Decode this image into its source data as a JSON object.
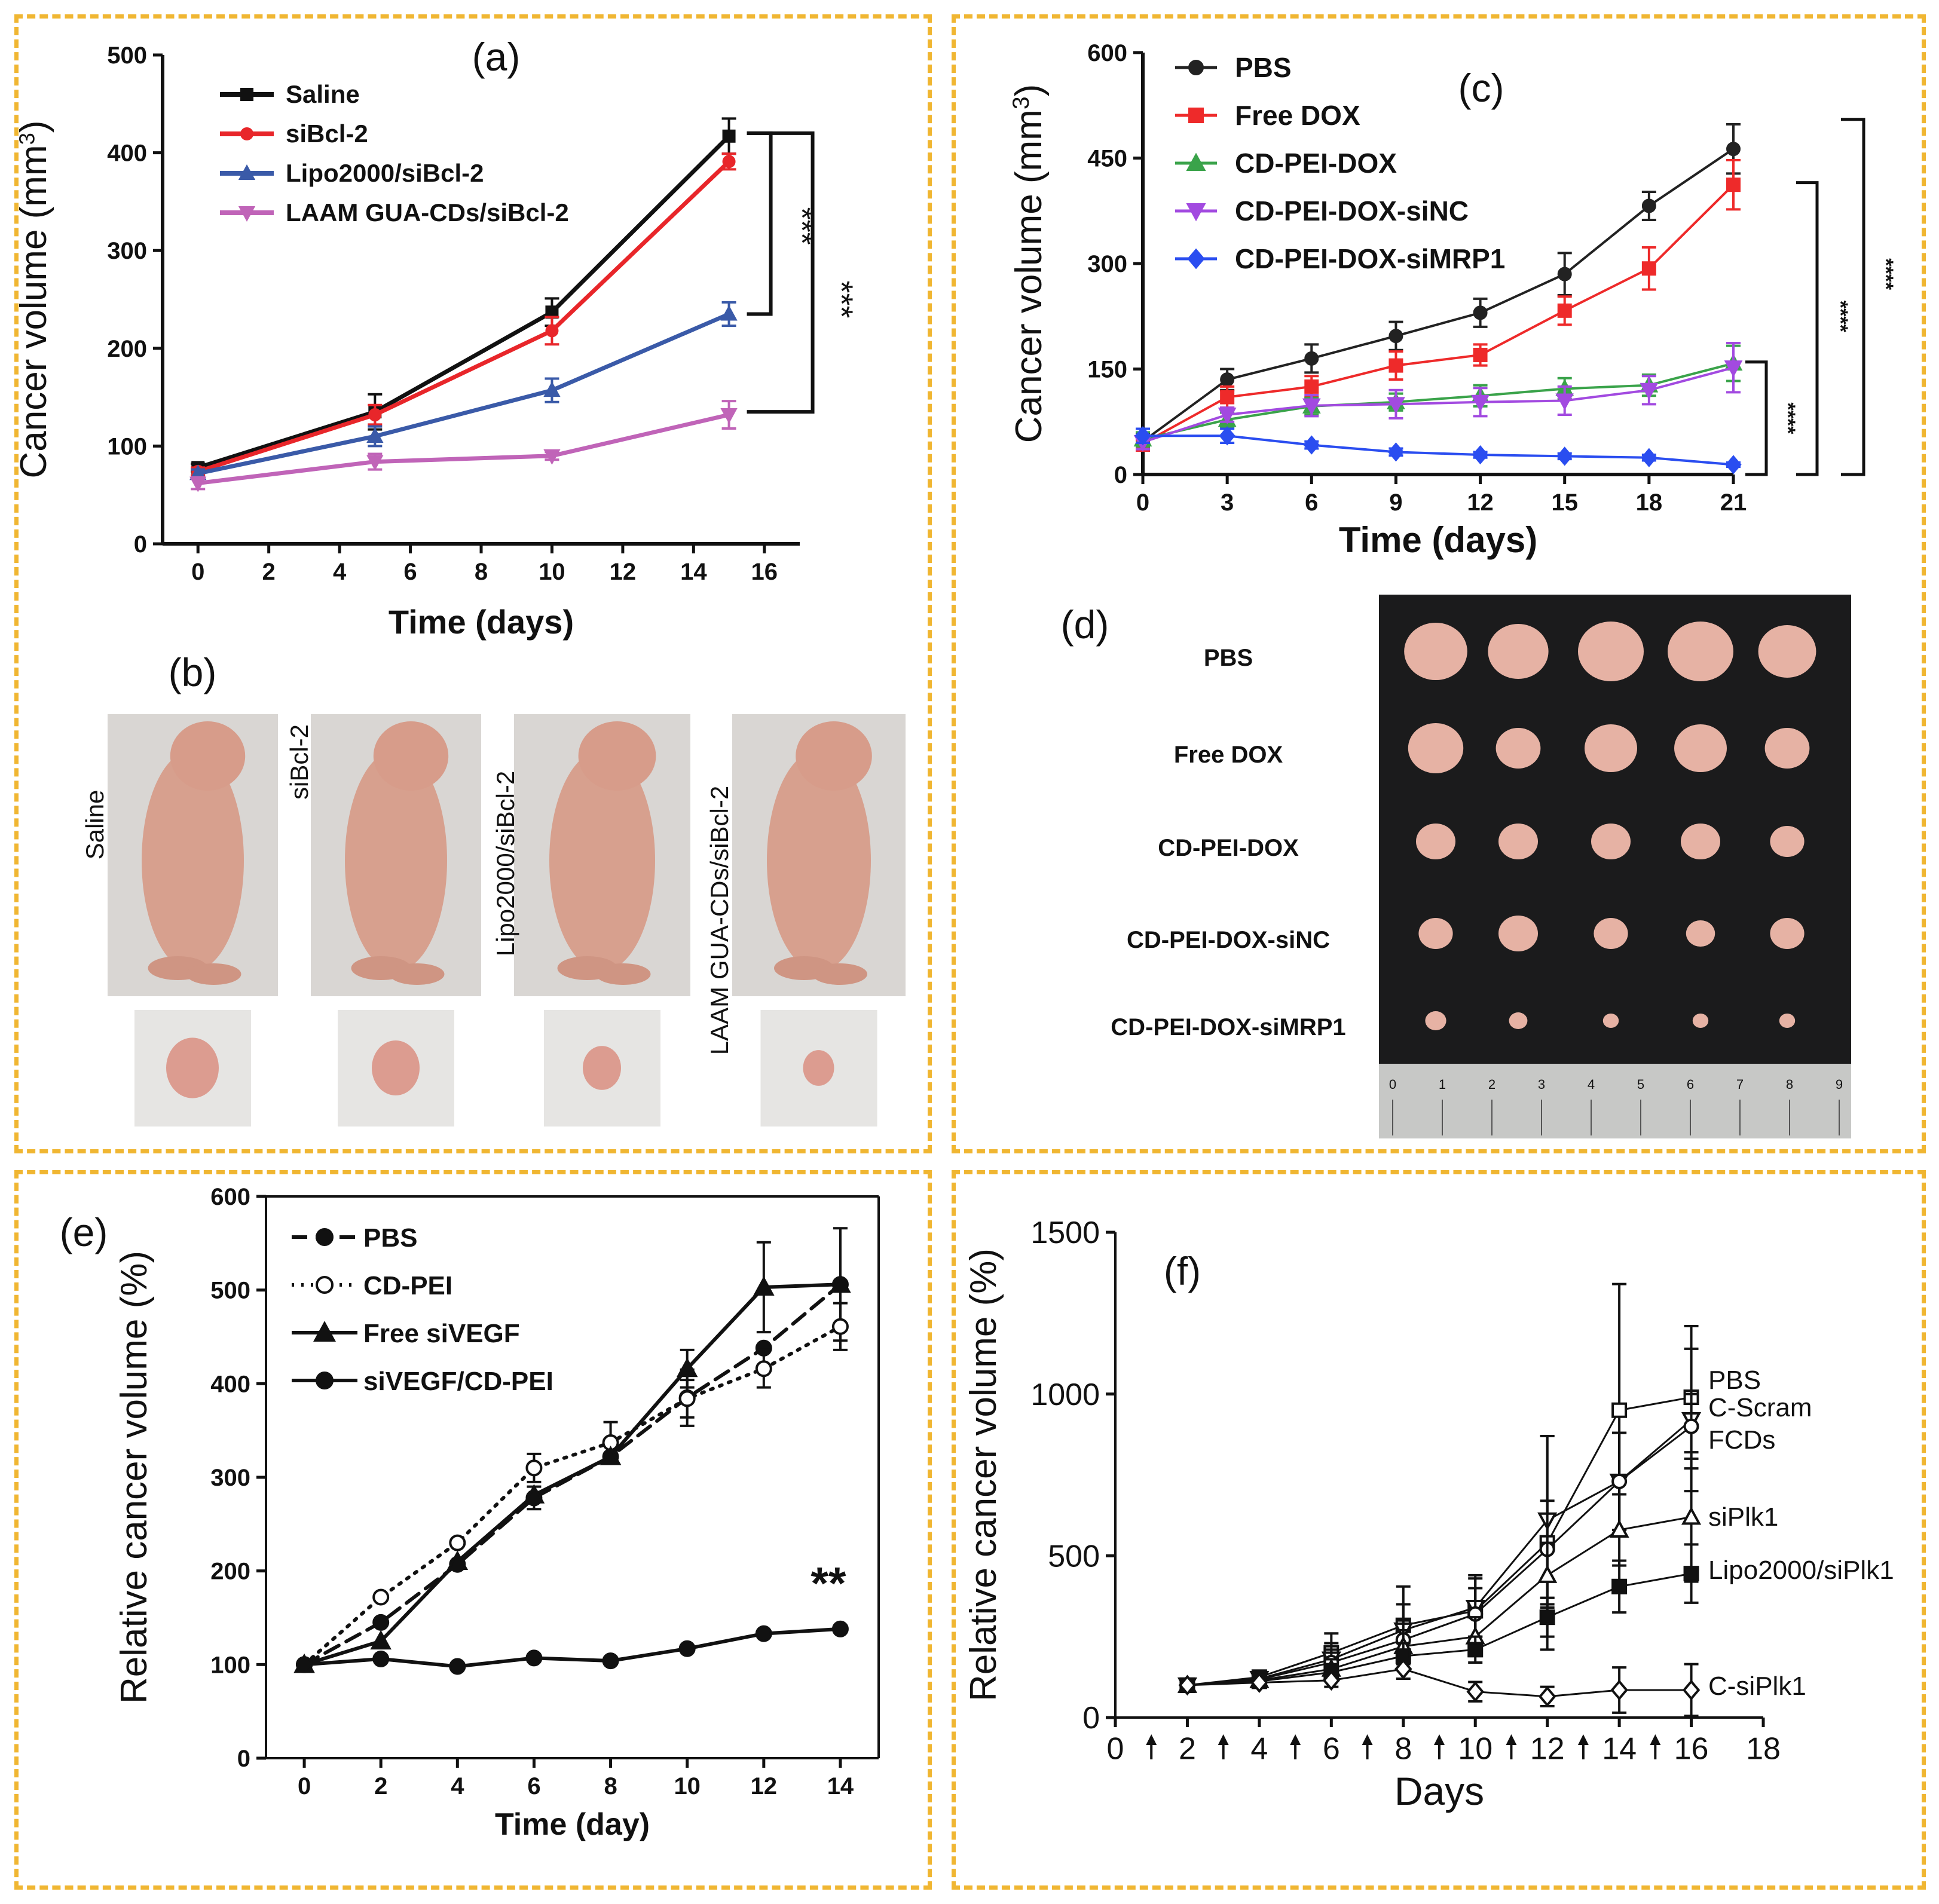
{
  "chart_data": [
    {
      "panel": "(a)",
      "type": "line",
      "xlabel": "Time (days)",
      "ylabel": "Cancer volume (mm",
      "ylabel_sup": "3",
      "ylabel_end": ")",
      "xlim": [
        -1,
        17
      ],
      "ylim": [
        0,
        500
      ],
      "xticks": [
        0,
        2,
        4,
        6,
        8,
        10,
        12,
        14,
        16
      ],
      "yticks": [
        0,
        100,
        200,
        300,
        400,
        500
      ],
      "legend_position": "top-left",
      "series": [
        {
          "name": "Saline",
          "color": "#111111",
          "marker": "square",
          "x": [
            0,
            5,
            10,
            15
          ],
          "y": [
            78,
            135,
            237,
            417
          ],
          "err": [
            4,
            18,
            14,
            18
          ]
        },
        {
          "name": "siBcl-2",
          "color": "#e8262a",
          "marker": "circle",
          "x": [
            0,
            5,
            10,
            15
          ],
          "y": [
            74,
            132,
            218,
            391
          ],
          "err": [
            4,
            10,
            14,
            8
          ]
        },
        {
          "name": "Lipo2000/siBcl-2",
          "color": "#3a5aa8",
          "marker": "triangle-up",
          "x": [
            0,
            5,
            10,
            15
          ],
          "y": [
            72,
            110,
            157,
            235
          ],
          "err": [
            4,
            10,
            12,
            12
          ]
        },
        {
          "name": "LAAM GUA-CDs/siBcl-2",
          "color": "#c064b8",
          "marker": "triangle-down",
          "x": [
            0,
            5,
            10,
            15
          ],
          "y": [
            62,
            84,
            90,
            132
          ],
          "err": [
            6,
            8,
            4,
            14
          ]
        }
      ],
      "significance": [
        "***",
        "***"
      ]
    },
    {
      "panel": "(c)",
      "type": "line",
      "xlabel": "Time (days)",
      "ylabel": "Cancer volume (mm",
      "ylabel_sup": "3",
      "ylabel_end": ")",
      "xlim": [
        0,
        21
      ],
      "ylim": [
        0,
        600
      ],
      "xticks": [
        0,
        3,
        6,
        9,
        12,
        15,
        18,
        21
      ],
      "yticks": [
        0,
        150,
        300,
        450,
        600
      ],
      "legend_position": "top-left",
      "series": [
        {
          "name": "PBS",
          "color": "#222222",
          "marker": "circle",
          "x": [
            0,
            3,
            6,
            9,
            12,
            15,
            18,
            21
          ],
          "y": [
            47,
            135,
            165,
            197,
            230,
            285,
            382,
            463
          ],
          "err": [
            10,
            15,
            20,
            20,
            20,
            30,
            20,
            35
          ]
        },
        {
          "name": "Free DOX",
          "color": "#ee2a2a",
          "marker": "square",
          "x": [
            0,
            3,
            6,
            9,
            12,
            15,
            18,
            21
          ],
          "y": [
            44,
            110,
            125,
            155,
            170,
            233,
            293,
            412
          ],
          "err": [
            10,
            15,
            15,
            20,
            15,
            20,
            30,
            35
          ]
        },
        {
          "name": "CD-PEI-DOX",
          "color": "#3aa34a",
          "marker": "triangle-up",
          "x": [
            0,
            3,
            6,
            9,
            12,
            15,
            18,
            21
          ],
          "y": [
            50,
            78,
            97,
            103,
            112,
            122,
            127,
            158
          ],
          "err": [
            10,
            10,
            12,
            12,
            15,
            15,
            15,
            25
          ]
        },
        {
          "name": "CD-PEI-DOX-siNC",
          "color": "#a24ae0",
          "marker": "triangle-down",
          "x": [
            0,
            3,
            6,
            9,
            12,
            15,
            18,
            21
          ],
          "y": [
            46,
            85,
            98,
            100,
            103,
            105,
            120,
            152
          ],
          "err": [
            10,
            10,
            15,
            20,
            20,
            20,
            20,
            35
          ]
        },
        {
          "name": "CD-PEI-DOX-siMRP1",
          "color": "#2a4df0",
          "marker": "diamond",
          "x": [
            0,
            3,
            6,
            9,
            12,
            15,
            18,
            21
          ],
          "y": [
            55,
            55,
            42,
            32,
            28,
            26,
            24,
            14
          ],
          "err": [
            10,
            10,
            5,
            5,
            4,
            4,
            4,
            3
          ]
        }
      ],
      "significance": [
        "****",
        "****",
        "****"
      ]
    },
    {
      "panel": "(e)",
      "type": "line",
      "xlabel": "Time (day)",
      "ylabel": "Relative cancer volume (%)",
      "xlim": [
        -1,
        15
      ],
      "ylim": [
        0,
        600
      ],
      "xticks": [
        0,
        2,
        4,
        6,
        8,
        10,
        12,
        14
      ],
      "yticks": [
        0,
        100,
        200,
        300,
        400,
        500,
        600
      ],
      "legend_position": "top-left",
      "series": [
        {
          "name": "PBS",
          "style": "dashed",
          "marker": "filled-circle",
          "x": [
            0,
            2,
            4,
            6,
            8,
            10,
            12,
            14
          ],
          "y": [
            100,
            145,
            207,
            278,
            322,
            385,
            438,
            506
          ],
          "err": [
            0,
            0,
            0,
            12,
            0,
            30,
            0,
            60
          ]
        },
        {
          "name": "CD-PEI",
          "style": "dotted",
          "marker": "open-circle",
          "x": [
            0,
            2,
            4,
            6,
            8,
            10,
            12,
            14
          ],
          "y": [
            100,
            172,
            230,
            310,
            337,
            384,
            416,
            461
          ],
          "err": [
            0,
            0,
            0,
            15,
            22,
            20,
            20,
            25
          ]
        },
        {
          "name": "Free siVEGF",
          "style": "solid",
          "marker": "triangle",
          "x": [
            0,
            2,
            4,
            6,
            8,
            10,
            12,
            14
          ],
          "y": [
            100,
            125,
            210,
            281,
            322,
            416,
            503,
            506
          ],
          "err": [
            0,
            0,
            0,
            0,
            0,
            20,
            48,
            0
          ]
        },
        {
          "name": "siVEGF/CD-PEI",
          "style": "solid",
          "marker": "filled-circle",
          "x": [
            0,
            2,
            4,
            6,
            8,
            10,
            12,
            14
          ],
          "y": [
            100,
            106,
            98,
            107,
            104,
            117,
            133,
            138
          ],
          "err": [
            0,
            0,
            0,
            0,
            0,
            0,
            0,
            0
          ]
        }
      ],
      "significance": [
        "**"
      ]
    },
    {
      "panel": "(f)",
      "type": "line",
      "xlabel": "Days",
      "ylabel": "Relative cancer volume (%)",
      "xlim": [
        0,
        18
      ],
      "ylim": [
        0,
        1500
      ],
      "xticks": [
        0,
        2,
        4,
        6,
        8,
        10,
        12,
        14,
        16,
        18
      ],
      "yticks": [
        0,
        500,
        1000,
        1500
      ],
      "dosing_arrows": [
        1,
        3,
        5,
        7,
        9,
        11,
        13,
        15
      ],
      "series": [
        {
          "name": "PBS",
          "marker": "open-square",
          "x": [
            2,
            4,
            6,
            8,
            10,
            12,
            14,
            16
          ],
          "y": [
            100,
            125,
            200,
            285,
            330,
            540,
            950,
            990
          ],
          "err": [
            0,
            20,
            60,
            120,
            110,
            330,
            390,
            220
          ]
        },
        {
          "name": "C-Scram",
          "marker": "open-triangle-down",
          "x": [
            2,
            4,
            6,
            8,
            10,
            12,
            14,
            16
          ],
          "y": [
            100,
            120,
            180,
            270,
            340,
            610,
            730,
            920
          ],
          "err": [
            0,
            20,
            50,
            80,
            90,
            260,
            150,
            220
          ]
        },
        {
          "name": "FCDs",
          "marker": "open-circle",
          "x": [
            2,
            4,
            6,
            8,
            10,
            12,
            14,
            16
          ],
          "y": [
            100,
            118,
            170,
            240,
            320,
            520,
            730,
            900
          ],
          "err": [
            0,
            15,
            40,
            60,
            80,
            150,
            150,
            100
          ]
        },
        {
          "name": "siPlk1",
          "marker": "open-triangle-up",
          "x": [
            2,
            4,
            6,
            8,
            10,
            12,
            14,
            16
          ],
          "y": [
            100,
            115,
            150,
            220,
            250,
            440,
            580,
            620
          ],
          "err": [
            0,
            15,
            30,
            50,
            60,
            100,
            110,
            200
          ]
        },
        {
          "name": "Lipo2000/siPlk1",
          "marker": "filled-square",
          "x": [
            2,
            4,
            6,
            8,
            10,
            12,
            14,
            16
          ],
          "y": [
            100,
            112,
            140,
            190,
            210,
            310,
            405,
            445
          ],
          "err": [
            0,
            10,
            25,
            40,
            40,
            60,
            80,
            90
          ]
        },
        {
          "name": "C-siPlk1",
          "marker": "open-diamond",
          "x": [
            2,
            4,
            6,
            8,
            10,
            12,
            14,
            16
          ],
          "y": [
            100,
            108,
            115,
            150,
            80,
            65,
            85,
            85
          ],
          "err": [
            0,
            10,
            20,
            30,
            30,
            30,
            70,
            80
          ]
        }
      ]
    }
  ],
  "panel_b": {
    "letter": "(b)",
    "groups": [
      "Saline",
      "siBcl-2",
      "Lipo2000/siBcl-2",
      "LAAM GUA-CDs/siBcl-2"
    ]
  },
  "panel_d": {
    "letter": "(d)",
    "rows": [
      "PBS",
      "Free DOX",
      "CD-PEI-DOX",
      "CD-PEI-DOX-siNC",
      "CD-PEI-DOX-siMRP1"
    ],
    "ruler_ticks": [
      "0",
      "1",
      "2",
      "3",
      "4",
      "5",
      "6",
      "7",
      "8",
      "9"
    ]
  },
  "colors": {
    "frame": "#f0b632",
    "photo_bg": "#d9d6d3",
    "skin": "#d7a08e",
    "tumor": "#e6b2a4",
    "dark_bg": "#1b1b1c"
  }
}
